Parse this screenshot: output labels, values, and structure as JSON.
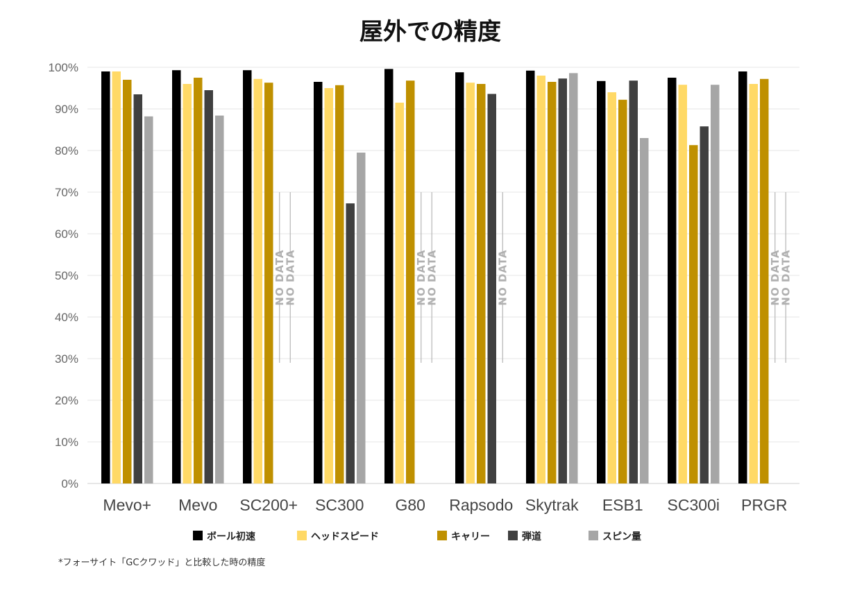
{
  "chart_data": {
    "type": "bar",
    "title": "屋外での精度",
    "categories": [
      "Mevo+",
      "Mevo",
      "SC200+",
      "SC300",
      "G80",
      "Rapsodo",
      "Skytrak",
      "ESB1",
      "SC300i",
      "PRGR"
    ],
    "series": [
      {
        "name": "ボール初速",
        "color": "#000000",
        "values": [
          99,
          99.3,
          99.3,
          96.5,
          99.6,
          98.8,
          99.2,
          96.7,
          97.5,
          99
        ]
      },
      {
        "name": "ヘッドスピード",
        "color": "#FFD966",
        "values": [
          99,
          96,
          97.2,
          95,
          91.5,
          96.3,
          98,
          94,
          95.8,
          96
        ]
      },
      {
        "name": "キャリー",
        "color": "#BF9000",
        "values": [
          97,
          97.5,
          96.3,
          95.7,
          96.8,
          96,
          96.5,
          92.2,
          81.3,
          97.2
        ]
      },
      {
        "name": "弾道",
        "color": "#404040",
        "values": [
          93.5,
          94.5,
          null,
          67.3,
          null,
          93.6,
          97.3,
          96.8,
          85.8,
          null
        ]
      },
      {
        "name": "スピン量",
        "color": "#A6A6A6",
        "values": [
          88.2,
          88.4,
          null,
          79.5,
          null,
          null,
          98.6,
          83,
          95.8,
          null
        ]
      }
    ],
    "no_data_label": "NO DATA",
    "no_data_markers": [
      {
        "category": "SC200+",
        "series": [
          "弾道",
          "スピン量"
        ]
      },
      {
        "category": "G80",
        "series": [
          "弾道",
          "スピン量"
        ]
      },
      {
        "category": "Rapsodo",
        "series": [
          "スピン量"
        ]
      },
      {
        "category": "PRGR",
        "series": [
          "弾道",
          "スピン量"
        ]
      }
    ],
    "yticks": [
      "0%",
      "10%",
      "20%",
      "30%",
      "40%",
      "50%",
      "60%",
      "70%",
      "80%",
      "90%",
      "100%"
    ],
    "ylim": [
      0,
      100
    ],
    "xlabel": "",
    "ylabel": "",
    "grid": true,
    "legend_position": "bottom"
  },
  "footnote": "*フォーサイト「GCクワッド」と比較した時の精度"
}
